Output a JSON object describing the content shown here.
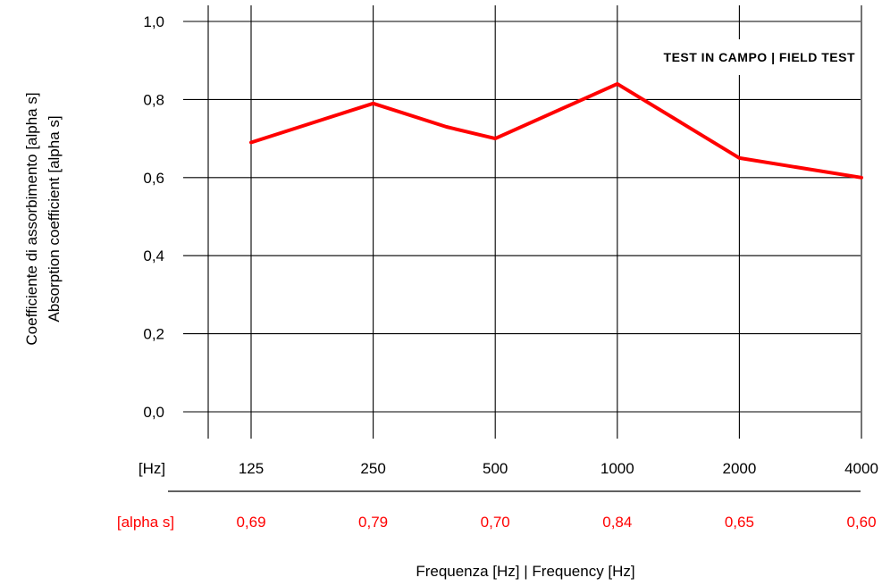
{
  "chart_data": {
    "type": "line",
    "annotation": "TEST IN CAMPO | FIELD TEST",
    "xlabel": "Frequenza [Hz] | Frequency [Hz]",
    "ylabel_line1": "Coefficiente di assorbimento [alpha s]",
    "ylabel_line2": "Absorption coefficient [alpha s]",
    "row_labels": {
      "frequency": "[Hz]",
      "alpha": "[alpha s]"
    },
    "categories": [
      "125",
      "250",
      "500",
      "1000",
      "2000",
      "4000"
    ],
    "y_ticks": [
      "0,0",
      "0,2",
      "0,4",
      "0,6",
      "0,8",
      "1,0"
    ],
    "ylim": [
      0,
      1
    ],
    "grid": true,
    "series": [
      {
        "values": [
          0.69,
          0.79,
          0.7,
          0.84,
          0.65,
          0.6
        ],
        "value_labels": [
          "0,69",
          "0,79",
          "0,70",
          "0,84",
          "0,65",
          "0,60"
        ],
        "color": "#ff0000"
      }
    ],
    "curve_points": [
      {
        "x": 0,
        "y": 0.69
      },
      {
        "x": 0.5,
        "y": 0.74
      },
      {
        "x": 1,
        "y": 0.79
      },
      {
        "x": 1.6,
        "y": 0.73
      },
      {
        "x": 2,
        "y": 0.7
      },
      {
        "x": 3,
        "y": 0.84
      },
      {
        "x": 4,
        "y": 0.65
      },
      {
        "x": 4.4,
        "y": 0.63
      },
      {
        "x": 5,
        "y": 0.6
      }
    ]
  }
}
